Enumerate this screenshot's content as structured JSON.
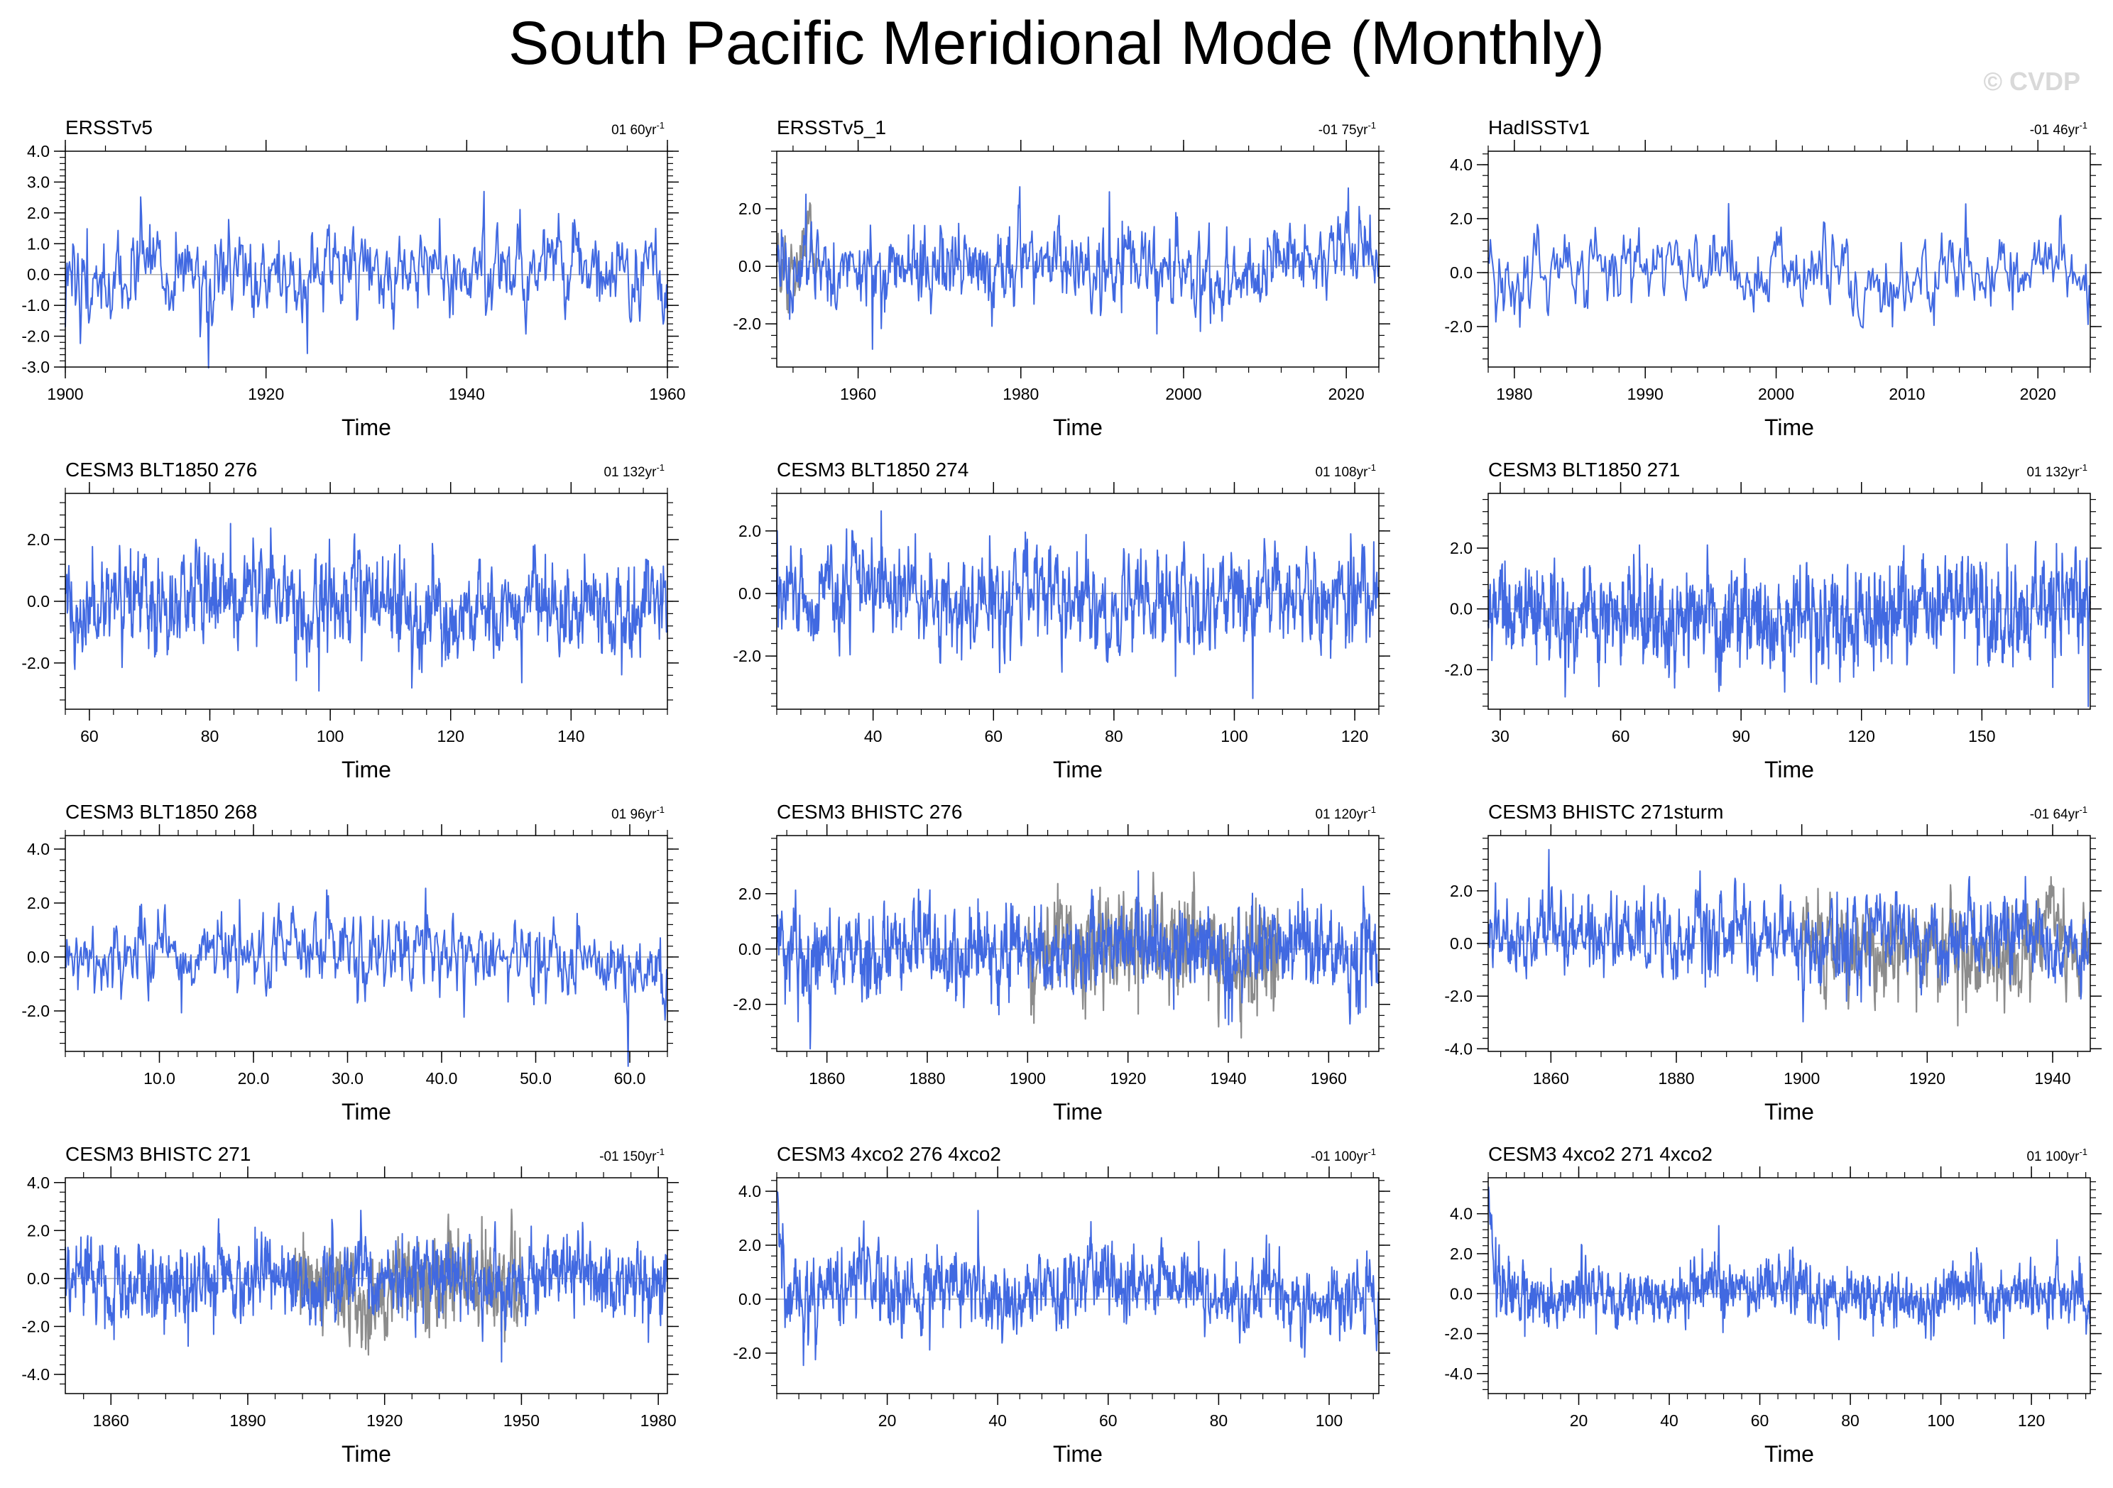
{
  "title": "South Pacific Meridional Mode (Monthly)",
  "watermark": "© CVDP",
  "colors": {
    "primary_series": "#4169e1",
    "overlay_series": "#8c8c8c",
    "axis": "#000000",
    "zero_line": "#b0b0b0"
  },
  "chart_data": [
    {
      "type": "line",
      "title": "ERSSTv5",
      "trend_label": "01 60yr",
      "xlabel": "Time",
      "xlim": [
        1900,
        1960
      ],
      "ylim": [
        -3,
        4
      ],
      "xticks": [
        1900,
        1920,
        1940,
        1960
      ],
      "xtick_labels": [
        "1900",
        "1920",
        "1940",
        "1960"
      ],
      "yticks": [
        -3,
        -2,
        -1,
        0,
        1,
        2,
        3,
        4
      ],
      "ytick_labels": [
        "-3.0",
        "-2.0",
        "-1.0",
        "0.0",
        "1.0",
        "2.0",
        "3.0",
        "4.0"
      ],
      "series": [
        {
          "name": "primary",
          "seed": 11,
          "amp": 1.0,
          "color": "#4169e1"
        }
      ]
    },
    {
      "type": "line",
      "title": "ERSSTv5_1",
      "trend_label": "-01 75yr",
      "xlabel": "Time",
      "xlim": [
        1950,
        2024
      ],
      "ylim": [
        -3.5,
        4
      ],
      "xticks": [
        1960,
        1980,
        2000,
        2020
      ],
      "xtick_labels": [
        "1960",
        "1980",
        "2000",
        "2020"
      ],
      "yticks": [
        -2,
        0,
        2
      ],
      "ytick_labels": [
        "-2.0",
        "0.0",
        "2.0"
      ],
      "series": [
        {
          "name": "overlay",
          "seed": 12,
          "amp": 1.0,
          "color": "#8c8c8c",
          "start": 1950,
          "end": 1955
        },
        {
          "name": "primary",
          "seed": 13,
          "amp": 1.0,
          "color": "#4169e1"
        }
      ]
    },
    {
      "type": "line",
      "title": "HadISSTv1",
      "trend_label": "-01 46yr",
      "xlabel": "Time",
      "xlim": [
        1978,
        2024
      ],
      "ylim": [
        -3.5,
        4.5
      ],
      "xticks": [
        1980,
        1990,
        2000,
        2010,
        2020
      ],
      "xtick_labels": [
        "1980",
        "1990",
        "2000",
        "2010",
        "2020"
      ],
      "yticks": [
        -2,
        0,
        2,
        4
      ],
      "ytick_labels": [
        "-2.0",
        "0.0",
        "2.0",
        "4.0"
      ],
      "series": [
        {
          "name": "primary",
          "seed": 14,
          "amp": 1.0,
          "color": "#4169e1"
        }
      ]
    },
    {
      "type": "line",
      "title": "CESM3 BLT1850 276",
      "trend_label": "01 132yr",
      "xlabel": "Time",
      "xlim": [
        56,
        156
      ],
      "ylim": [
        -3.5,
        3.5
      ],
      "xticks": [
        60,
        80,
        100,
        120,
        140
      ],
      "xtick_labels": [
        "60",
        "80",
        "100",
        "120",
        "140"
      ],
      "yticks": [
        -2,
        0,
        2
      ],
      "ytick_labels": [
        "-2.0",
        "0.0",
        "2.0"
      ],
      "series": [
        {
          "name": "primary",
          "seed": 15,
          "amp": 1.1,
          "color": "#4169e1"
        }
      ]
    },
    {
      "type": "line",
      "title": "CESM3 BLT1850 274",
      "trend_label": "01 108yr",
      "xlabel": "Time",
      "xlim": [
        24,
        124
      ],
      "ylim": [
        -3.7,
        3.2
      ],
      "xticks": [
        40,
        60,
        80,
        100,
        120
      ],
      "xtick_labels": [
        "40",
        "60",
        "80",
        "100",
        "120"
      ],
      "yticks": [
        -2,
        0,
        2
      ],
      "ytick_labels": [
        "-2.0",
        "0.0",
        "2.0"
      ],
      "series": [
        {
          "name": "primary",
          "seed": 16,
          "amp": 1.1,
          "color": "#4169e1"
        }
      ]
    },
    {
      "type": "line",
      "title": "CESM3 BLT1850 271",
      "trend_label": "01 132yr",
      "xlabel": "Time",
      "xlim": [
        27,
        177
      ],
      "ylim": [
        -3.3,
        3.8
      ],
      "xticks": [
        30,
        60,
        90,
        120,
        150
      ],
      "xtick_labels": [
        "30",
        "60",
        "90",
        "120",
        "150"
      ],
      "yticks": [
        -2,
        0,
        2
      ],
      "ytick_labels": [
        "-2.0",
        "0.0",
        "2.0"
      ],
      "series": [
        {
          "name": "primary",
          "seed": 17,
          "amp": 1.1,
          "color": "#4169e1"
        }
      ]
    },
    {
      "type": "line",
      "title": "CESM3 BLT1850 268",
      "trend_label": "01 96yr",
      "xlabel": "Time",
      "xlim": [
        0,
        64
      ],
      "ylim": [
        -3.5,
        4.5
      ],
      "xticks": [
        10,
        20,
        30,
        40,
        50,
        60
      ],
      "xtick_labels": [
        "10.0",
        "20.0",
        "30.0",
        "40.0",
        "50.0",
        "60.0"
      ],
      "yticks": [
        -2,
        0,
        2,
        4
      ],
      "ytick_labels": [
        "-2.0",
        "0.0",
        "2.0",
        "4.0"
      ],
      "series": [
        {
          "name": "primary",
          "seed": 18,
          "amp": 1.0,
          "color": "#4169e1"
        }
      ]
    },
    {
      "type": "line",
      "title": "CESM3 BHISTC 276",
      "trend_label": "01 120yr",
      "xlabel": "Time",
      "xlim": [
        1850,
        1970
      ],
      "ylim": [
        -3.7,
        4.1
      ],
      "xticks": [
        1860,
        1880,
        1900,
        1920,
        1940,
        1960
      ],
      "xtick_labels": [
        "1860",
        "1880",
        "1900",
        "1920",
        "1940",
        "1960"
      ],
      "yticks": [
        -2,
        0,
        2
      ],
      "ytick_labels": [
        "-2.0",
        "0.0",
        "2.0"
      ],
      "series": [
        {
          "name": "overlay",
          "seed": 19,
          "amp": 1.3,
          "color": "#8c8c8c",
          "start": 1900,
          "end": 1950
        },
        {
          "name": "primary",
          "seed": 20,
          "amp": 1.1,
          "color": "#4169e1"
        }
      ]
    },
    {
      "type": "line",
      "title": "CESM3 BHISTC 271sturm",
      "trend_label": "-01 64yr",
      "xlabel": "Time",
      "xlim": [
        1850,
        1946
      ],
      "ylim": [
        -4.1,
        4.1
      ],
      "xticks": [
        1860,
        1880,
        1900,
        1920,
        1940
      ],
      "xtick_labels": [
        "1860",
        "1880",
        "1900",
        "1920",
        "1940"
      ],
      "yticks": [
        -4,
        -2,
        0,
        2
      ],
      "ytick_labels": [
        "-4.0",
        "-2.0",
        "0.0",
        "2.0"
      ],
      "series": [
        {
          "name": "overlay",
          "seed": 21,
          "amp": 1.3,
          "color": "#8c8c8c",
          "start": 1900,
          "end": 1946
        },
        {
          "name": "primary",
          "seed": 22,
          "amp": 1.1,
          "color": "#4169e1"
        }
      ]
    },
    {
      "type": "line",
      "title": "CESM3 BHISTC 271",
      "trend_label": "-01 150yr",
      "xlabel": "Time",
      "xlim": [
        1850,
        1982
      ],
      "ylim": [
        -4.8,
        4.2
      ],
      "xticks": [
        1860,
        1890,
        1920,
        1950,
        1980
      ],
      "xtick_labels": [
        "1860",
        "1890",
        "1920",
        "1950",
        "1980"
      ],
      "yticks": [
        -4,
        -2,
        0,
        2,
        4
      ],
      "ytick_labels": [
        "-4.0",
        "-2.0",
        "0.0",
        "2.0",
        "4.0"
      ],
      "series": [
        {
          "name": "overlay",
          "seed": 23,
          "amp": 1.3,
          "color": "#8c8c8c",
          "start": 1900,
          "end": 1950
        },
        {
          "name": "primary",
          "seed": 24,
          "amp": 1.1,
          "color": "#4169e1"
        }
      ]
    },
    {
      "type": "line",
      "title": "CESM3 4xco2 276 4xco2",
      "trend_label": "-01 100yr",
      "xlabel": "Time",
      "xlim": [
        0,
        109
      ],
      "ylim": [
        -3.5,
        4.5
      ],
      "xticks": [
        20,
        40,
        60,
        80,
        100
      ],
      "xtick_labels": [
        "20",
        "40",
        "60",
        "80",
        "100"
      ],
      "yticks": [
        -2,
        0,
        2,
        4
      ],
      "ytick_labels": [
        "-2.0",
        "0.0",
        "2.0",
        "4.0"
      ],
      "series": [
        {
          "name": "primary",
          "seed": 25,
          "amp": 1.0,
          "color": "#4169e1",
          "startpeak": 3.8
        }
      ]
    },
    {
      "type": "line",
      "title": "CESM3 4xco2 271 4xco2",
      "trend_label": "01 100yr",
      "xlabel": "Time",
      "xlim": [
        0,
        133
      ],
      "ylim": [
        -5,
        5.8
      ],
      "xticks": [
        20,
        40,
        60,
        80,
        100,
        120
      ],
      "xtick_labels": [
        "20",
        "40",
        "60",
        "80",
        "100",
        "120"
      ],
      "yticks": [
        -4,
        -2,
        0,
        2,
        4
      ],
      "ytick_labels": [
        "-4.0",
        "-2.0",
        "0.0",
        "2.0",
        "4.0"
      ],
      "series": [
        {
          "name": "primary",
          "seed": 26,
          "amp": 1.0,
          "color": "#4169e1",
          "startpeak": 5.2
        }
      ]
    }
  ]
}
